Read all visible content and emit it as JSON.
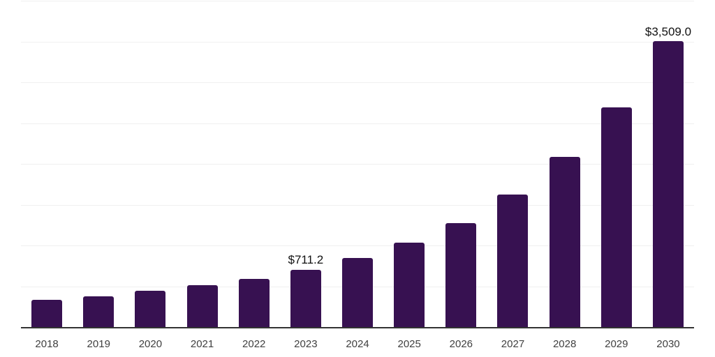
{
  "chart_data": {
    "type": "bar",
    "title": "",
    "xlabel": "",
    "ylabel": "",
    "categories": [
      "2018",
      "2019",
      "2020",
      "2021",
      "2022",
      "2023",
      "2024",
      "2025",
      "2026",
      "2027",
      "2028",
      "2029",
      "2030"
    ],
    "values": [
      338,
      389,
      449,
      518,
      595,
      711.2,
      856,
      1044,
      1279,
      1630,
      2092,
      2700,
      3509
    ],
    "data_labels": {
      "2023": "$711.2",
      "2030": "$3,509.0"
    },
    "ylim": [
      0,
      4000
    ],
    "gridline_step": 500,
    "grid": true,
    "legend_position": "none"
  },
  "colors": {
    "bar": "#371151",
    "gridline": "#f0f0f0",
    "axis_line": "#333333",
    "tick_label": "#404040",
    "data_label": "#111111",
    "background": "#ffffff"
  }
}
